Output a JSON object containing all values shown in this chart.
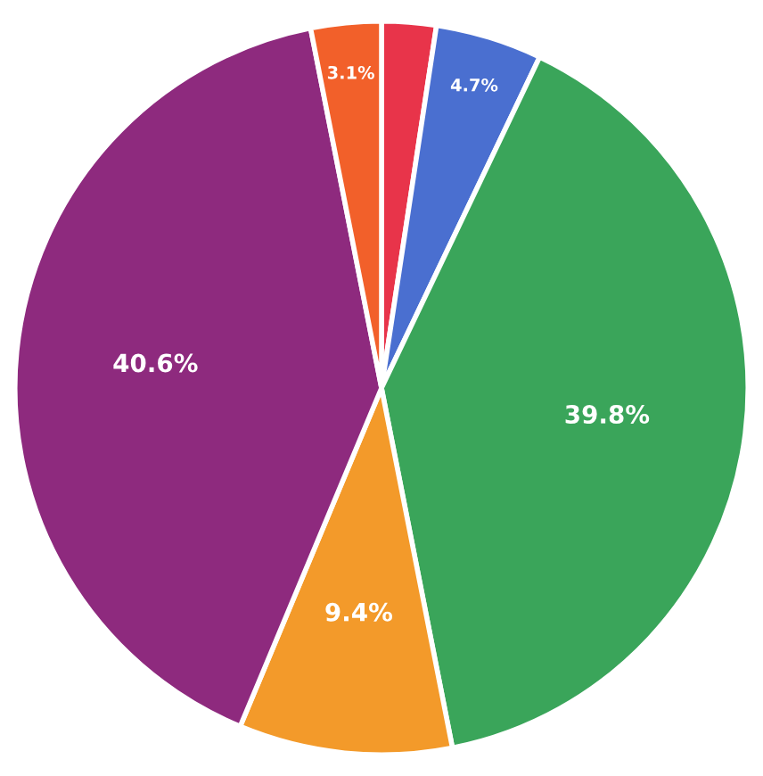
{
  "chart_data": {
    "type": "pie",
    "categories": [
      null,
      null,
      null,
      null,
      null,
      null
    ],
    "values": [
      2.4,
      4.7,
      39.8,
      9.4,
      40.6,
      3.1
    ],
    "colors": [
      "#e8344a",
      "#4a6fd0",
      "#3aa55a",
      "#f39a2a",
      "#8e2a7e",
      "#f2602a"
    ],
    "value_labels": [
      null,
      "4.7%",
      "39.8%",
      "9.4%",
      "40.6%",
      "3.1%"
    ]
  }
}
